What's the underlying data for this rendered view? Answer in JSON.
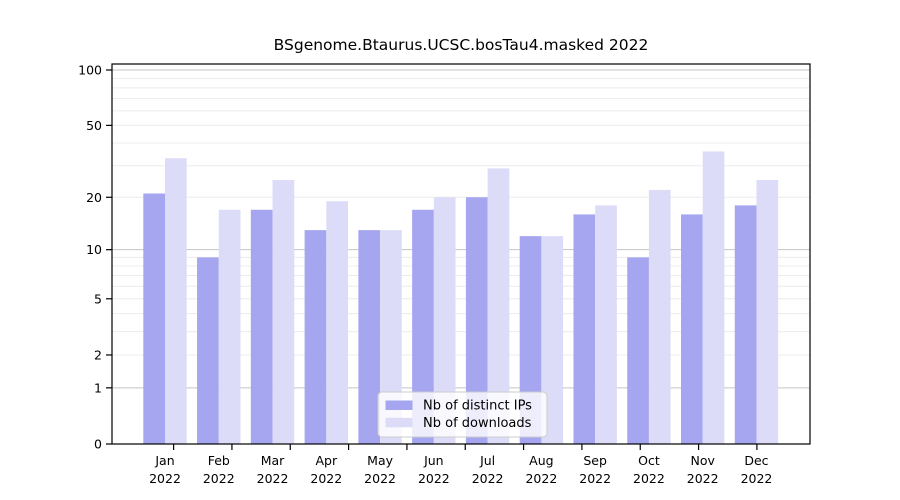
{
  "title": "BSgenome.Btaurus.UCSC.bosTau4.masked 2022",
  "colors": {
    "distinct_ips_bar": "#a5a5f0",
    "downloads_bar": "#dcdcf8",
    "grid_major": "#c4c4c4",
    "grid_minor": "#ececec",
    "axis": "#000000",
    "legend_border": "#cccccc",
    "text": "#000000"
  },
  "chart_data": {
    "type": "bar",
    "title": "BSgenome.Btaurus.UCSC.bosTau4.masked 2022",
    "categories": [
      "Jan",
      "Feb",
      "Mar",
      "Apr",
      "May",
      "Jun",
      "Jul",
      "Aug",
      "Sep",
      "Oct",
      "Nov",
      "Dec"
    ],
    "year_label": "2022",
    "series": [
      {
        "name": "Nb of distinct IPs",
        "values": [
          21,
          9,
          17,
          13,
          13,
          17,
          20,
          12,
          16,
          9,
          16,
          18
        ]
      },
      {
        "name": "Nb of downloads",
        "values": [
          33,
          17,
          25,
          19,
          13,
          20,
          29,
          12,
          18,
          22,
          36,
          25
        ]
      }
    ],
    "y_axis": {
      "scale": "log1p",
      "tick_values": [
        0,
        1,
        2,
        5,
        10,
        20,
        50,
        100
      ],
      "tick_labels": [
        "0",
        "1",
        "2",
        "5",
        "10",
        "20",
        "50",
        "100"
      ],
      "major_grid_values": [
        1,
        10,
        100
      ],
      "minor_grid_values": [
        2,
        3,
        4,
        5,
        6,
        7,
        8,
        9,
        20,
        30,
        40,
        50,
        60,
        70,
        80,
        90
      ],
      "range": [
        0,
        105
      ]
    },
    "xlabel": "",
    "ylabel": "",
    "grid": true,
    "legend": {
      "position": "bottom-center",
      "entries": [
        "Nb of distinct IPs",
        "Nb of downloads"
      ]
    }
  }
}
